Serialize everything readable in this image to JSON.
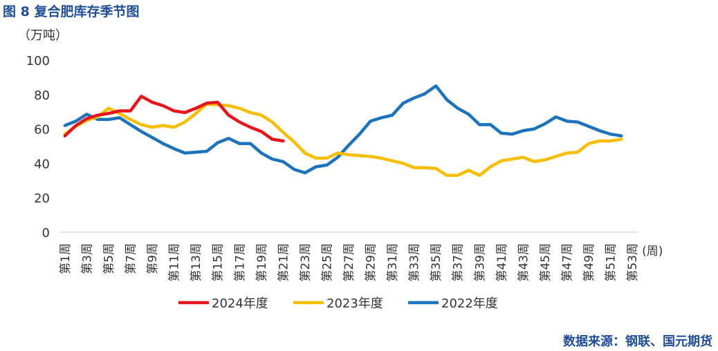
{
  "figure_title": "图 8    复合肥库存季节图",
  "source": "数据来源：钢联、国元期货",
  "chart_data": {
    "type": "line",
    "title": "",
    "ylabel": "（万吨）",
    "xlabel": "(周)",
    "ylim": [
      0,
      100
    ],
    "yticks": [
      0,
      20,
      40,
      60,
      80,
      100
    ],
    "grid": false,
    "legend_position": "bottom",
    "x_tick_labels": [
      "第1周",
      "第3周",
      "第5周",
      "第7周",
      "第9周",
      "第11周",
      "第13周",
      "第15周",
      "第17周",
      "第19周",
      "第21周",
      "第23周",
      "第25周",
      "第27周",
      "第29周",
      "第31周",
      "第33周",
      "第35周",
      "第37周",
      "第39周",
      "第41周",
      "第43周",
      "第45周",
      "第47周",
      "第49周",
      "第51周",
      "第53周"
    ],
    "x_tick_weeks": [
      1,
      3,
      5,
      7,
      9,
      11,
      13,
      15,
      17,
      19,
      21,
      23,
      25,
      27,
      29,
      31,
      33,
      35,
      37,
      39,
      41,
      43,
      45,
      47,
      49,
      51,
      53
    ],
    "series": [
      {
        "name": "2024年度",
        "color": "#e8141b",
        "x": [
          1,
          2,
          3,
          4,
          5,
          6,
          7,
          8,
          9,
          10,
          11,
          12,
          13,
          14,
          15,
          16,
          17,
          18,
          19,
          20,
          21
        ],
        "values": [
          56,
          62,
          66,
          68,
          69,
          70.5,
          70.5,
          79,
          75.5,
          73.5,
          70.5,
          69.5,
          72,
          75,
          75.5,
          68,
          64,
          61,
          58.5,
          54,
          53
        ]
      },
      {
        "name": "2023年度",
        "color": "#f7be00",
        "x": [
          1,
          2,
          3,
          4,
          5,
          6,
          7,
          8,
          9,
          10,
          11,
          12,
          13,
          14,
          15,
          16,
          17,
          18,
          19,
          20,
          21,
          22,
          23,
          24,
          25,
          26,
          27,
          28,
          29,
          30,
          31,
          32,
          33,
          34,
          35,
          36,
          37,
          38,
          39,
          40,
          41,
          42,
          43,
          44,
          45,
          46,
          47,
          48,
          49,
          50,
          51,
          52
        ],
        "values": [
          57,
          61.5,
          65,
          67,
          72,
          69,
          65.5,
          62.5,
          61,
          62,
          61,
          64,
          69,
          74.5,
          74,
          73.5,
          72,
          69.5,
          68,
          64,
          58,
          52.5,
          46,
          43,
          43,
          46,
          45,
          44.5,
          44,
          43,
          41.5,
          40,
          37.5,
          37.5,
          37,
          33,
          33,
          36,
          33,
          38,
          41.5,
          42.5,
          43.5,
          41,
          42,
          44,
          46,
          46.5,
          51.5,
          53,
          53,
          54
        ]
      },
      {
        "name": "2022年度",
        "color": "#1c72bb",
        "x": [
          1,
          2,
          3,
          4,
          5,
          6,
          7,
          8,
          9,
          10,
          11,
          12,
          13,
          14,
          15,
          16,
          17,
          18,
          19,
          20,
          21,
          22,
          23,
          24,
          25,
          26,
          27,
          28,
          29,
          30,
          31,
          32,
          33,
          34,
          35,
          36,
          37,
          38,
          39,
          40,
          41,
          42,
          43,
          44,
          45,
          46,
          47,
          48,
          49,
          50,
          51,
          52
        ],
        "values": [
          62,
          64.5,
          68.5,
          65.5,
          65.5,
          66.5,
          62.5,
          58.5,
          55,
          51.5,
          48.5,
          46,
          46.5,
          47,
          52,
          54.5,
          51.5,
          51.5,
          46,
          42.5,
          41,
          36.5,
          34.5,
          38,
          39,
          43.5,
          50.5,
          57,
          64.5,
          66.5,
          68,
          75,
          78,
          80.5,
          85,
          77,
          72,
          68.5,
          62.5,
          62.5,
          57.5,
          57,
          59,
          60,
          63,
          67,
          64.5,
          64,
          61.5,
          59,
          57,
          56
        ]
      }
    ]
  }
}
